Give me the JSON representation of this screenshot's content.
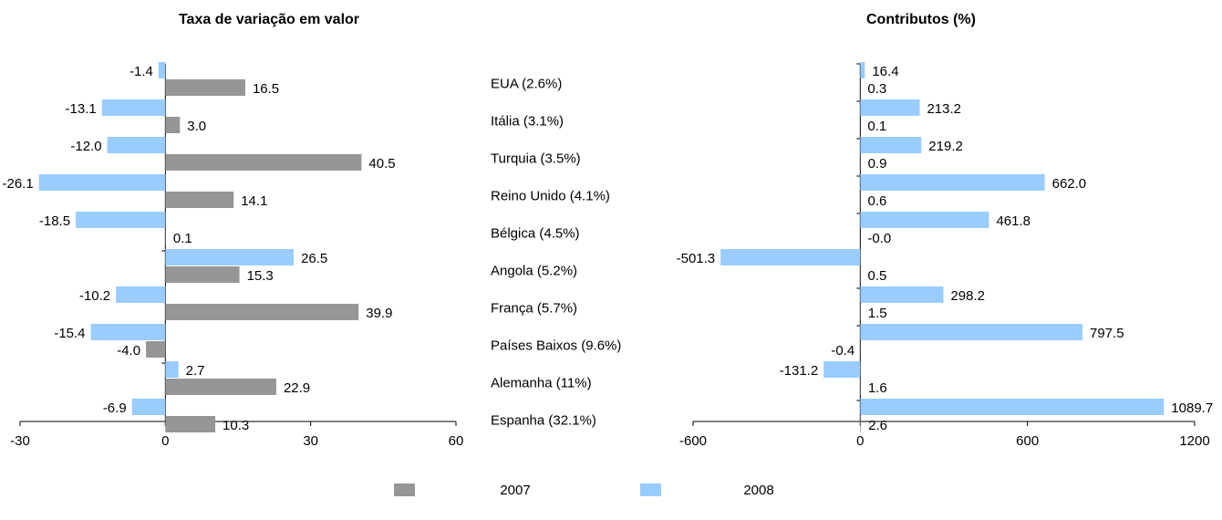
{
  "chart_data": [
    {
      "type": "barh",
      "title": "Taxa de variação em valor",
      "categories": [
        "EUA (2.6%)",
        "Itália (3.1%)",
        "Turquia (3.5%)",
        "Reino Unido (4.1%)",
        "Bélgica (4.5%)",
        "Angola (5.2%)",
        "França (5.7%)",
        "Países Baixos  (9.6%)",
        "Alemanha (11%)",
        "Espanha (32.1%)"
      ],
      "series": [
        {
          "name": "2008",
          "color": "#99ccff",
          "label_color": "#1f6fbf",
          "values": [
            -1.4,
            -13.1,
            -12.0,
            -26.1,
            -18.5,
            26.5,
            -10.2,
            -15.4,
            2.7,
            -6.9
          ],
          "value_labels": [
            "-1.4",
            "-13.1",
            "-12.0",
            "-26.1",
            "-18.5",
            "26.5",
            "-10.2",
            "-15.4",
            "2.7",
            "-6.9"
          ]
        },
        {
          "name": "2007",
          "color": "#969696",
          "label_color": "#8c8c8c",
          "values": [
            16.5,
            3.0,
            40.5,
            14.1,
            0.1,
            15.3,
            39.9,
            -4.0,
            22.9,
            10.3
          ],
          "value_labels": [
            "16.5",
            "3.0",
            "40.5",
            "14.1",
            "0.1",
            "15.3",
            "39.9",
            "-4.0",
            "22.9",
            "10.3"
          ]
        }
      ],
      "xlim": [
        -30,
        60
      ],
      "xticks": [
        -30,
        0,
        30,
        60
      ]
    },
    {
      "type": "barh",
      "title": "Contributos (%)",
      "series": [
        {
          "name": "2008",
          "color": "#99ccff",
          "label_color": "#1f6fbf",
          "values": [
            16.4,
            213.2,
            219.2,
            662.0,
            461.8,
            -501.3,
            298.2,
            797.5,
            -131.2,
            1089.7
          ],
          "value_labels": [
            "16.4",
            "213.2",
            "219.2",
            "662.0",
            "461.8",
            "-501.3",
            "298.2",
            "797.5",
            "-131.2",
            "1089.7"
          ]
        },
        {
          "name": "2007",
          "color": "#969696",
          "label_color": "#8c8c8c",
          "values": [
            0.3,
            0.1,
            0.9,
            0.6,
            0,
            0.5,
            1.5,
            -0.4,
            1.6,
            2.6
          ],
          "value_labels": [
            "0.3",
            "0.1",
            "0.9",
            "0.6",
            "-0.0",
            "0.5",
            "1.5",
            "-0.4",
            "1.6",
            "2.6"
          ]
        }
      ],
      "xlim": [
        -600,
        1200
      ],
      "xticks": [
        -600,
        0,
        600,
        1200
      ]
    }
  ]
}
